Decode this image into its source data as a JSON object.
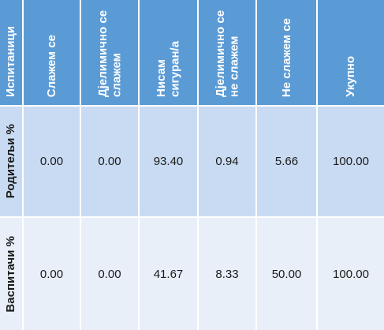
{
  "table": {
    "header": [
      "Испитаници",
      "Слажем се",
      "Дјелимично се слажем",
      "Нисам сигуран/а",
      "Дјелимично се не слажем",
      "Не слажем се",
      "Укупно"
    ],
    "rows": [
      [
        "Родитељи %",
        "0.00",
        "0.00",
        "93.40",
        "0.94",
        "5.66",
        "100.00"
      ],
      [
        "Васпитачи %",
        "0.00",
        "0.00",
        "41.67",
        "8.33",
        "50.00",
        "100.00"
      ]
    ]
  }
}
